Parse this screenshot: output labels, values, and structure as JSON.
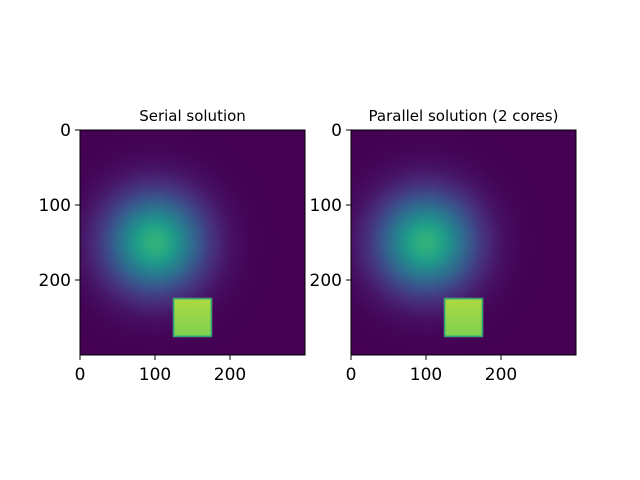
{
  "chart_data": [
    {
      "type": "heatmap",
      "title": "Serial solution",
      "xlim": [
        0,
        300
      ],
      "ylim": [
        300,
        0
      ],
      "x_ticks": [
        0,
        100,
        200
      ],
      "y_ticks": [
        0,
        100,
        200
      ],
      "colormap": "viridis",
      "value_range": [
        0,
        1
      ],
      "features": [
        {
          "kind": "gaussian-blob",
          "center": [
            100,
            150
          ],
          "sigma": 45,
          "peak": 0.72
        },
        {
          "kind": "square",
          "x_range": [
            125,
            175
          ],
          "y_range": [
            225,
            275
          ],
          "value": 0.93
        }
      ]
    },
    {
      "type": "heatmap",
      "title": "Parallel solution (2 cores)",
      "xlim": [
        0,
        300
      ],
      "ylim": [
        300,
        0
      ],
      "x_ticks": [
        0,
        100,
        200
      ],
      "y_ticks": [
        0,
        100,
        200
      ],
      "colormap": "viridis",
      "value_range": [
        0,
        1
      ],
      "features": [
        {
          "kind": "gaussian-blob",
          "center": [
            100,
            150
          ],
          "sigma": 45,
          "peak": 0.72
        },
        {
          "kind": "square",
          "x_range": [
            125,
            175
          ],
          "y_range": [
            225,
            275
          ],
          "value": 0.93
        }
      ]
    }
  ]
}
